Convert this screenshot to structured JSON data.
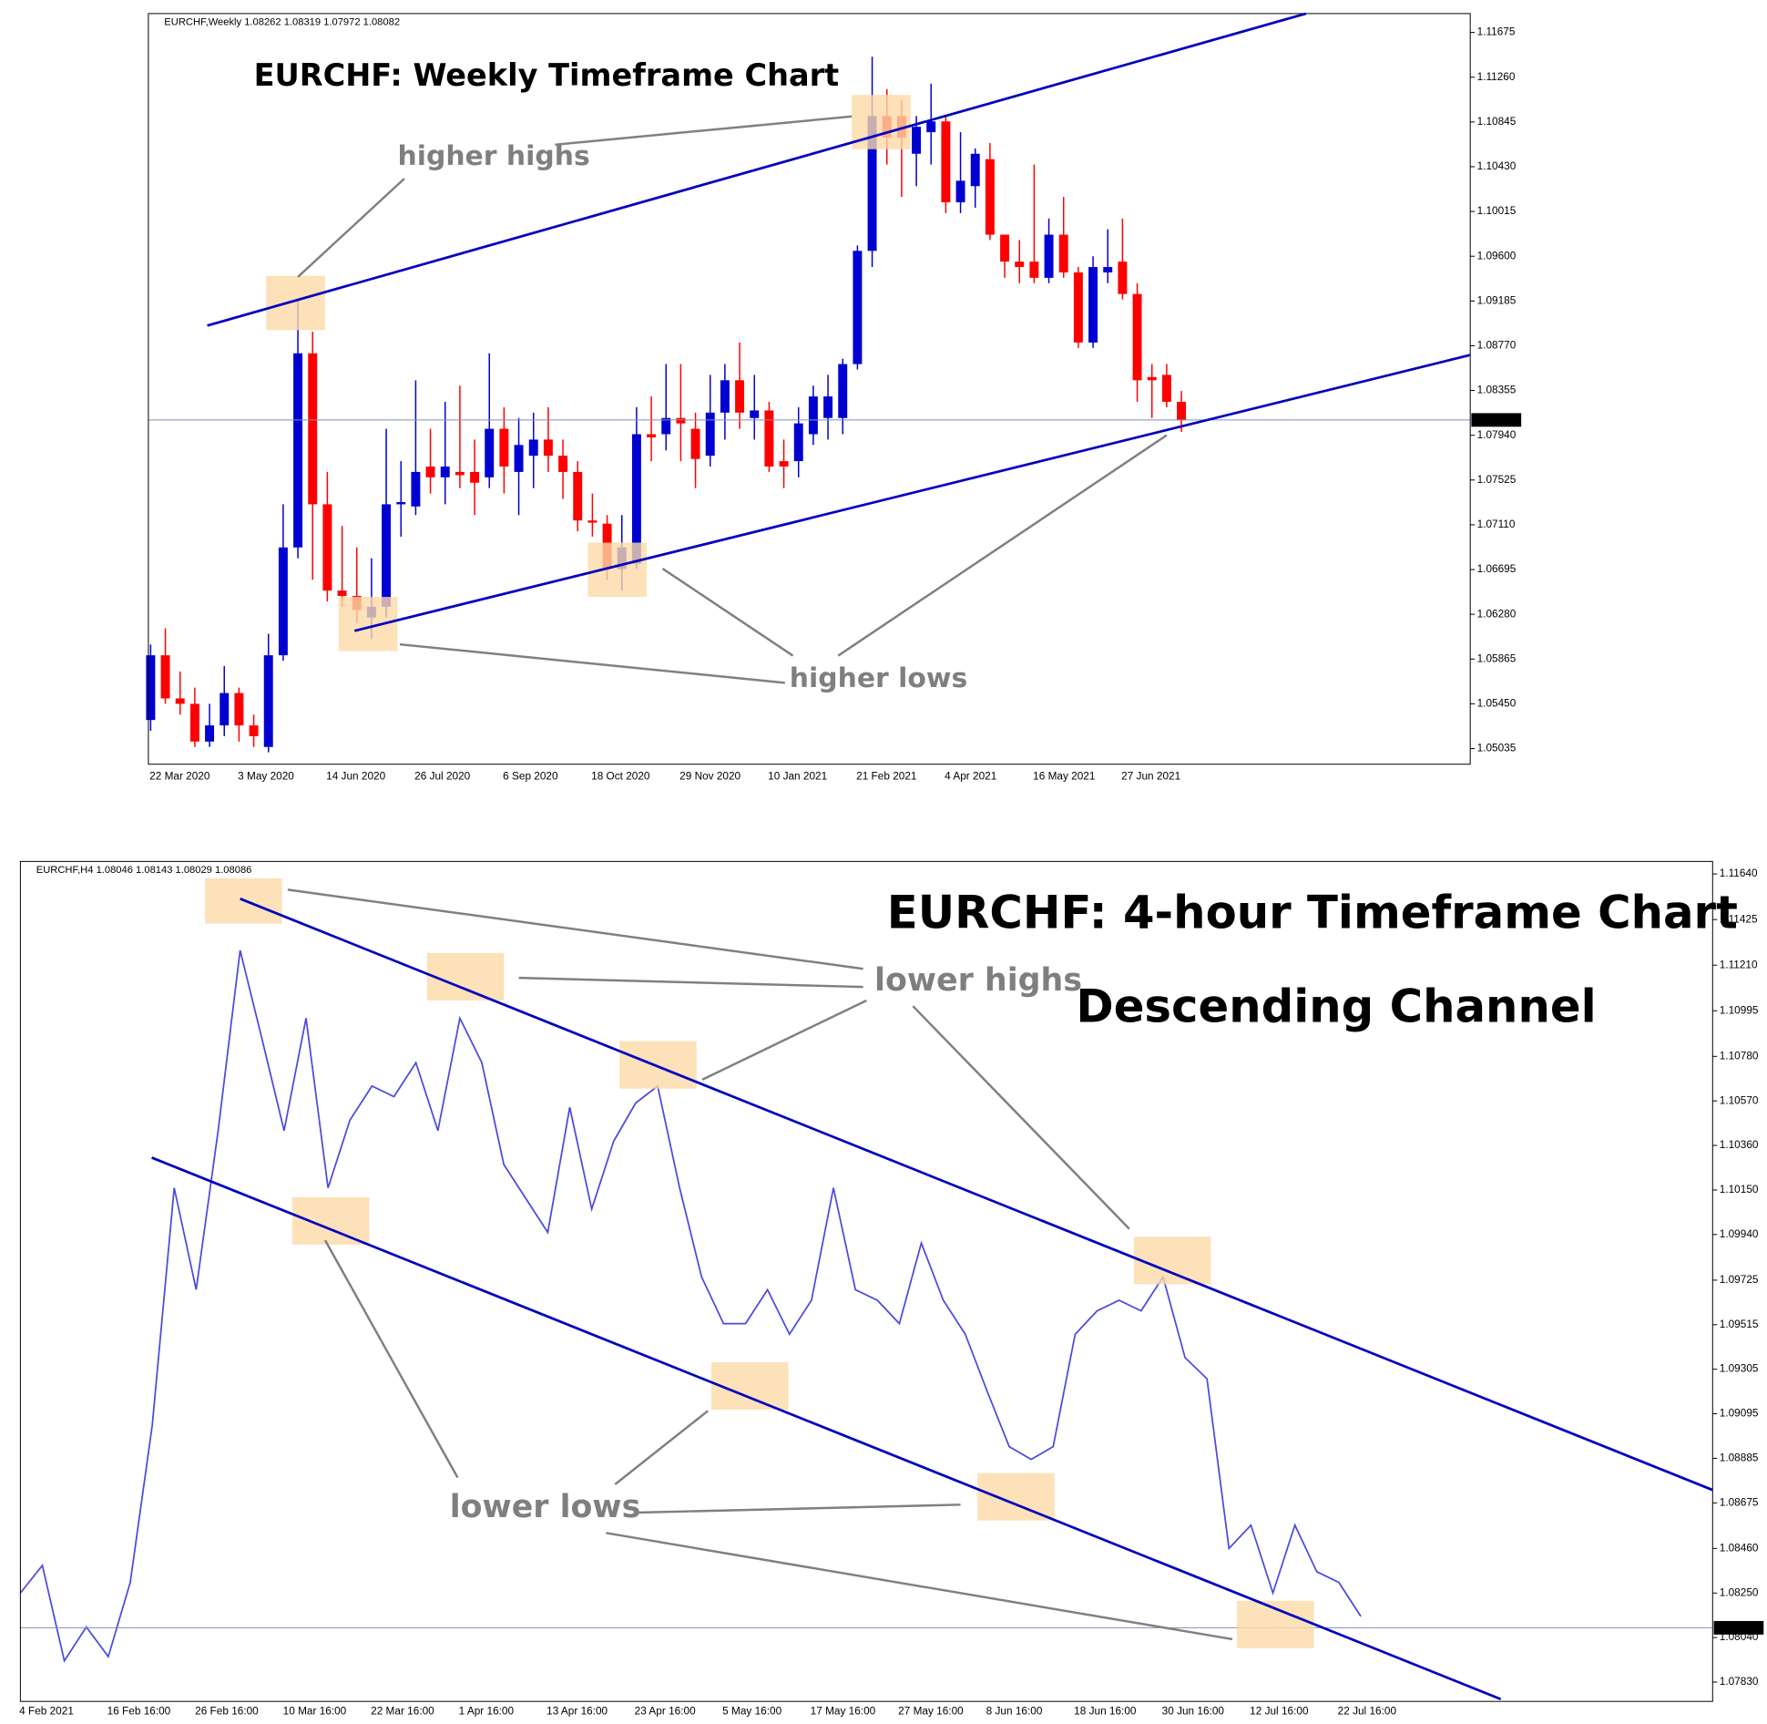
{
  "chart_data": [
    {
      "type": "candlestick",
      "header": "EURCHF,Weekly  1.08262 1.08319 1.07972 1.08082",
      "title": "EURCHF: Weekly Timeframe Chart",
      "annotations": [
        "higher highs",
        "higher lows"
      ],
      "categories": [
        "22 Mar 2020",
        null,
        null,
        null,
        null,
        null,
        "3 May 2020",
        null,
        null,
        null,
        null,
        null,
        "14 Jun 2020",
        null,
        null,
        null,
        null,
        null,
        "26 Jul 2020",
        null,
        null,
        null,
        null,
        null,
        "6 Sep 2020",
        null,
        null,
        null,
        null,
        null,
        "18 Oct 2020",
        null,
        null,
        null,
        null,
        null,
        "29 Nov 2020",
        null,
        null,
        null,
        null,
        null,
        "10 Jan 2021",
        null,
        null,
        null,
        null,
        null,
        "21 Feb 2021",
        null,
        null,
        null,
        null,
        null,
        "4 Apr 2021",
        null,
        null,
        null,
        null,
        null,
        "16 May 2021",
        null,
        null,
        null,
        null,
        null,
        "27 Jun 2021",
        null,
        null,
        null,
        null
      ],
      "open": [
        1.053,
        1.059,
        1.055,
        1.0545,
        1.051,
        1.0525,
        1.0555,
        1.0525,
        1.0505,
        1.059,
        1.069,
        1.087,
        1.073,
        1.065,
        1.0645,
        1.0625,
        1.0635,
        1.073,
        1.0728,
        1.0765,
        1.0755,
        1.076,
        1.076,
        1.0755,
        1.08,
        1.076,
        1.0775,
        1.079,
        1.0775,
        1.076,
        1.0715,
        1.0712,
        1.067,
        1.0675,
        1.0795,
        1.0795,
        1.081,
        1.08,
        1.0775,
        1.0815,
        1.0845,
        1.081,
        1.0817,
        1.077,
        1.077,
        1.0795,
        1.081,
        1.081,
        1.086,
        1.0965,
        1.109,
        1.109,
        1.1055,
        1.1075,
        1.1085,
        1.101,
        1.1025,
        1.105,
        1.098,
        1.0955,
        1.0955,
        1.094,
        1.098,
        1.0945,
        1.088,
        1.0945,
        1.0955,
        1.0925,
        1.0848,
        1.085,
        1.0825
      ],
      "high": [
        1.06,
        1.0615,
        1.0575,
        1.056,
        1.0545,
        1.058,
        1.056,
        1.0535,
        1.061,
        1.073,
        1.092,
        1.089,
        1.076,
        1.071,
        1.069,
        1.068,
        1.08,
        1.077,
        1.0845,
        1.08,
        1.0825,
        1.084,
        1.079,
        1.087,
        1.082,
        1.081,
        1.0815,
        1.082,
        1.079,
        1.077,
        1.074,
        1.072,
        1.072,
        1.082,
        1.083,
        1.086,
        1.086,
        1.0815,
        1.085,
        1.086,
        1.088,
        1.085,
        1.0825,
        1.079,
        1.082,
        1.084,
        1.085,
        1.0865,
        1.097,
        1.1145,
        1.1115,
        1.1105,
        1.109,
        1.112,
        1.109,
        1.1075,
        1.106,
        1.1065,
        1.098,
        1.0975,
        1.1045,
        1.0995,
        1.1015,
        1.095,
        1.096,
        1.0985,
        1.0995,
        1.0935,
        1.086,
        1.086,
        1.0835
      ],
      "low": [
        1.052,
        1.0545,
        1.0535,
        1.0505,
        1.0505,
        1.0515,
        1.051,
        1.0505,
        1.05,
        1.0585,
        1.068,
        1.066,
        1.064,
        1.0635,
        1.062,
        1.0605,
        1.0625,
        1.07,
        1.072,
        1.074,
        1.073,
        1.0745,
        1.072,
        1.0745,
        1.074,
        1.072,
        1.0745,
        1.076,
        1.0735,
        1.0705,
        1.07,
        1.066,
        1.065,
        1.067,
        1.077,
        1.078,
        1.077,
        1.0745,
        1.0765,
        1.079,
        1.08,
        1.079,
        1.076,
        1.0745,
        1.0755,
        1.0785,
        1.079,
        1.0795,
        1.0855,
        1.095,
        1.1045,
        1.1015,
        1.1025,
        1.1045,
        1.1,
        1.1,
        1.1005,
        1.0975,
        1.094,
        1.0935,
        1.0935,
        1.0935,
        1.094,
        1.0875,
        1.0875,
        1.0935,
        1.092,
        1.0825,
        1.081,
        1.082,
        1.0797
      ],
      "close": [
        1.059,
        1.055,
        1.0545,
        1.051,
        1.0525,
        1.0555,
        1.0525,
        1.0515,
        1.059,
        1.069,
        1.087,
        1.073,
        1.065,
        1.0645,
        1.0632,
        1.0635,
        1.073,
        1.0732,
        1.076,
        1.0755,
        1.0765,
        1.0757,
        1.075,
        1.08,
        1.0765,
        1.0785,
        1.079,
        1.0775,
        1.076,
        1.0715,
        1.0713,
        1.067,
        1.069,
        1.0795,
        1.0792,
        1.081,
        1.0805,
        1.0772,
        1.0815,
        1.0845,
        1.0815,
        1.0817,
        1.0765,
        1.0765,
        1.0805,
        1.083,
        1.083,
        1.086,
        1.0965,
        1.109,
        1.107,
        1.107,
        1.108,
        1.1085,
        1.101,
        1.103,
        1.1055,
        1.098,
        1.0955,
        1.095,
        1.094,
        1.098,
        1.0945,
        1.088,
        1.095,
        1.095,
        1.0925,
        1.0845,
        1.0845,
        1.0825,
        1.0808
      ],
      "up_color": "#0000d0",
      "down_color": "#ff0000",
      "last_price": 1.08082,
      "ylim": [
        1.0489,
        1.1185
      ],
      "yticks": [
        1.11675,
        {
          "value": 1.1126,
          "label": "1.11260"
        },
        1.10845,
        {
          "value": 1.1043,
          "label": "1.10430"
        },
        1.10015,
        {
          "value": 1.096,
          "label": "1.09600"
        },
        1.09185,
        {
          "value": 1.0877,
          "label": "1.08770"
        },
        1.08355,
        {
          "value": 1.0794,
          "label": "1.07940"
        },
        1.07525,
        {
          "value": 1.0711,
          "label": "1.07110"
        },
        1.06695,
        {
          "value": 1.0628,
          "label": "1.06280"
        },
        1.05865,
        {
          "value": 1.0545,
          "label": "1.05450"
        },
        1.05035
      ]
    },
    {
      "type": "line",
      "header": "EURCHF,H4  1.08046 1.08143 1.08029 1.08086",
      "title": "EURCHF: 4-hour Timeframe Chart",
      "subtitle": "Descending Channel",
      "annotations": [
        "lower highs",
        "lower lows"
      ],
      "categories": [
        "4 Feb 2021",
        null,
        null,
        null,
        "16 Feb 16:00",
        null,
        null,
        null,
        "26 Feb 16:00",
        null,
        null,
        null,
        "10 Mar 16:00",
        null,
        null,
        null,
        "22 Mar 16:00",
        null,
        null,
        null,
        "1 Apr 16:00",
        null,
        null,
        null,
        "13 Apr 16:00",
        null,
        null,
        null,
        "23 Apr 16:00",
        null,
        null,
        null,
        "5 May 16:00",
        null,
        null,
        null,
        "17 May 16:00",
        null,
        null,
        null,
        "27 May 16:00",
        null,
        null,
        null,
        "8 Jun 16:00",
        null,
        null,
        null,
        "18 Jun 16:00",
        null,
        null,
        null,
        "30 Jun 16:00",
        null,
        null,
        null,
        "12 Jul 16:00",
        null,
        null,
        null,
        "22 Jul 16:00",
        null
      ],
      "values": [
        1.0825,
        1.0838,
        1.0793,
        1.0809,
        1.0795,
        1.083,
        1.0904,
        1.1016,
        1.0968,
        1.1043,
        1.1128,
        1.1086,
        1.1043,
        1.1096,
        1.1016,
        1.1048,
        1.1064,
        1.1059,
        1.1075,
        1.1043,
        1.1096,
        1.1075,
        1.1027,
        1.1011,
        1.0995,
        1.1054,
        1.1006,
        1.1038,
        1.1056,
        1.1064,
        1.1016,
        1.0974,
        1.0952,
        1.0952,
        1.0968,
        1.0947,
        1.0963,
        1.1016,
        1.0968,
        1.0963,
        1.0952,
        1.099,
        1.0963,
        1.0947,
        1.092,
        1.0894,
        1.0888,
        1.0894,
        1.0947,
        1.0958,
        1.0963,
        1.0958,
        1.0974,
        1.0936,
        1.0926,
        1.0846,
        1.0857,
        1.0825,
        1.0857,
        1.0835,
        1.083,
        1.0814
      ],
      "color": "#4a4ae0",
      "last_price": 1.08086,
      "ylim": [
        1.07739,
        1.11699
      ],
      "yticks": [
        {
          "value": 1.1164,
          "label": "1.11640"
        },
        1.11425,
        {
          "value": 1.1121,
          "label": "1.11210"
        },
        1.10995,
        {
          "value": 1.1078,
          "label": "1.10780"
        },
        {
          "value": 1.1057,
          "label": "1.10570"
        },
        {
          "value": 1.1036,
          "label": "1.10360"
        },
        {
          "value": 1.1015,
          "label": "1.10150"
        },
        {
          "value": 1.0994,
          "label": "1.09940"
        },
        1.09725,
        1.09515,
        1.09305,
        1.09095,
        1.08885,
        1.08675,
        {
          "value": 1.0846,
          "label": "1.08460"
        },
        {
          "value": 1.0825,
          "label": "1.08250"
        },
        {
          "value": 1.0804,
          "label": "1.08040"
        },
        {
          "value": 1.0783,
          "label": "1.07830"
        }
      ]
    }
  ]
}
